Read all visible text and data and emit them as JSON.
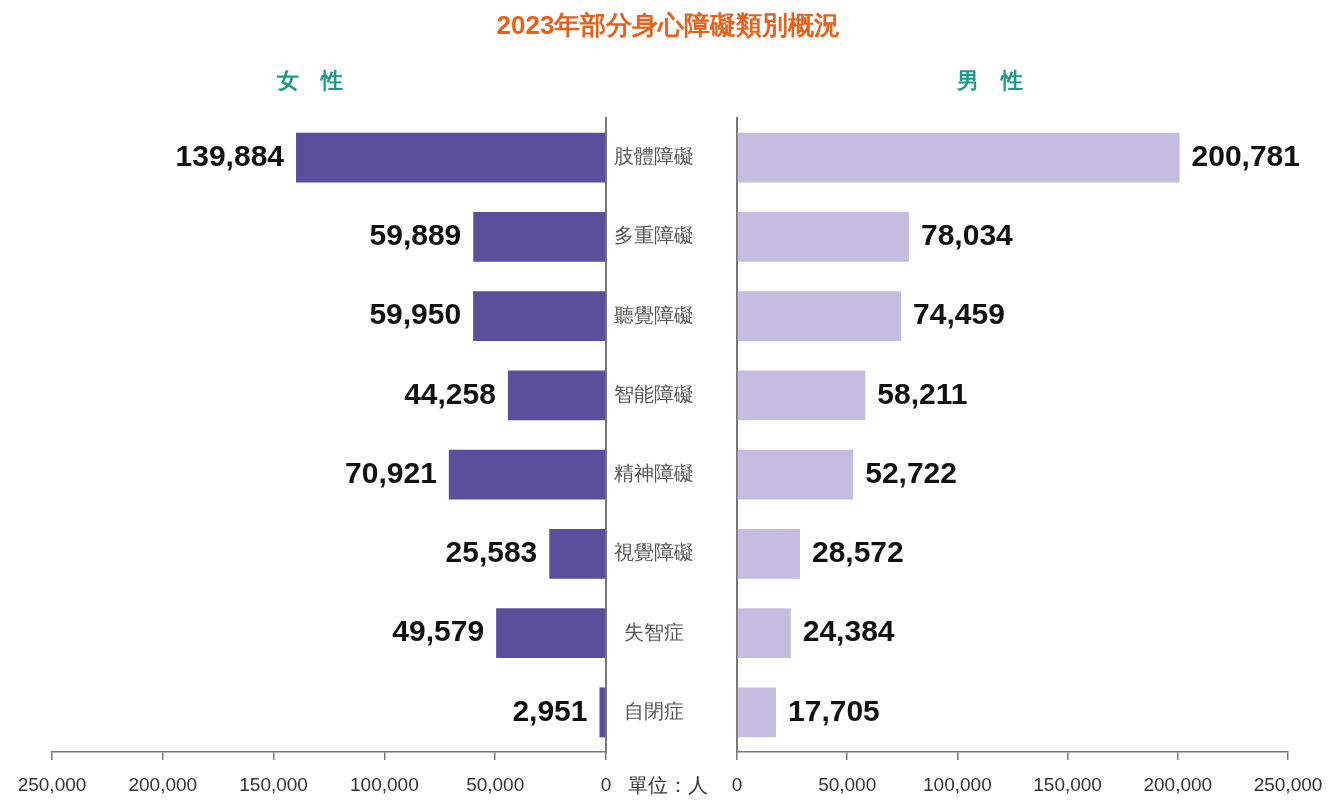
{
  "chart_data": [
    {
      "type": "bar",
      "orientation": "horizontal",
      "title": "2023年部分身心障礙類別概況",
      "subtitle": "女　性",
      "categories": [
        "肢體障礙",
        "多重障礙",
        "聽覺障礙",
        "智能障礙",
        "精神障礙",
        "視覺障礙",
        "失智症",
        "自閉症"
      ],
      "series": [
        {
          "color": "#5b4e9b",
          "values": [
            139884,
            59889,
            59950,
            44258,
            70921,
            25583,
            49579,
            2951
          ],
          "value_labels": [
            "139,884",
            "59,889",
            "59,950",
            "44,258",
            "70,921",
            "25,583",
            "49,579",
            "2,951"
          ]
        }
      ],
      "xlim": [
        250000,
        0
      ],
      "xticks": [
        {
          "value": 250000,
          "label": "250,000"
        },
        {
          "value": 200000,
          "label": "200,000"
        },
        {
          "value": 150000,
          "label": "150,000"
        },
        {
          "value": 100000,
          "label": "100,000"
        },
        {
          "value": 50000,
          "label": "50,000"
        },
        0
      ],
      "annotations": [
        "單位：人"
      ]
    },
    {
      "type": "bar",
      "orientation": "horizontal",
      "subtitle": "男　性",
      "categories": [
        null,
        null,
        null,
        null,
        null,
        null,
        null,
        null
      ],
      "series": [
        {
          "color": "#c4bddf",
          "values": [
            200781,
            78034,
            74459,
            58211,
            52722,
            28572,
            24384,
            17705
          ],
          "value_labels": [
            "200,781",
            "78,034",
            "74,459",
            "58,211",
            "52,722",
            "28,572",
            "24,384",
            "17,705"
          ]
        }
      ],
      "xlim": [
        0,
        250000
      ],
      "xticks": [
        0,
        {
          "value": 50000,
          "label": "50,000"
        },
        {
          "value": 100000,
          "label": "100,000"
        },
        {
          "value": 150000,
          "label": "150,000"
        },
        {
          "value": 200000,
          "label": "200,000"
        },
        {
          "value": 250000,
          "label": "250,000"
        }
      ],
      "tick_labels": "x"
    }
  ]
}
